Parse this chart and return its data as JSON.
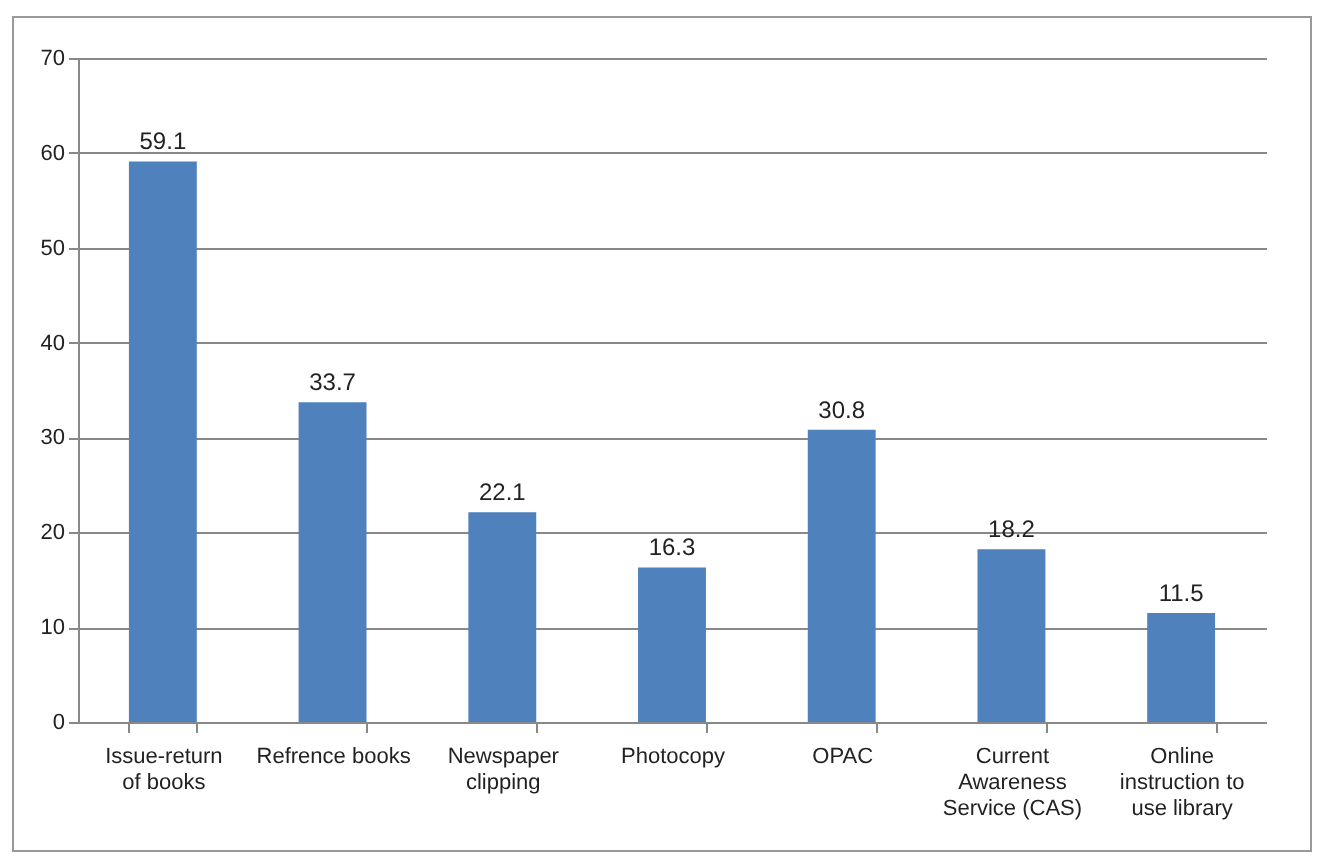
{
  "chart_data": {
    "type": "bar",
    "categories": [
      "Issue-return of books",
      "Refrence books",
      "Newspaper clipping",
      "Photocopy",
      "OPAC",
      "Current Awareness Service (CAS)",
      "Online instruction to use library"
    ],
    "values": [
      59.1,
      33.7,
      22.1,
      16.3,
      30.8,
      18.2,
      11.5
    ],
    "color": "#4f81bd",
    "ylim": [
      0,
      70
    ],
    "yticks": [
      0,
      10,
      20,
      30,
      40,
      50,
      60,
      70
    ],
    "grid": "y",
    "data_labels": true
  }
}
